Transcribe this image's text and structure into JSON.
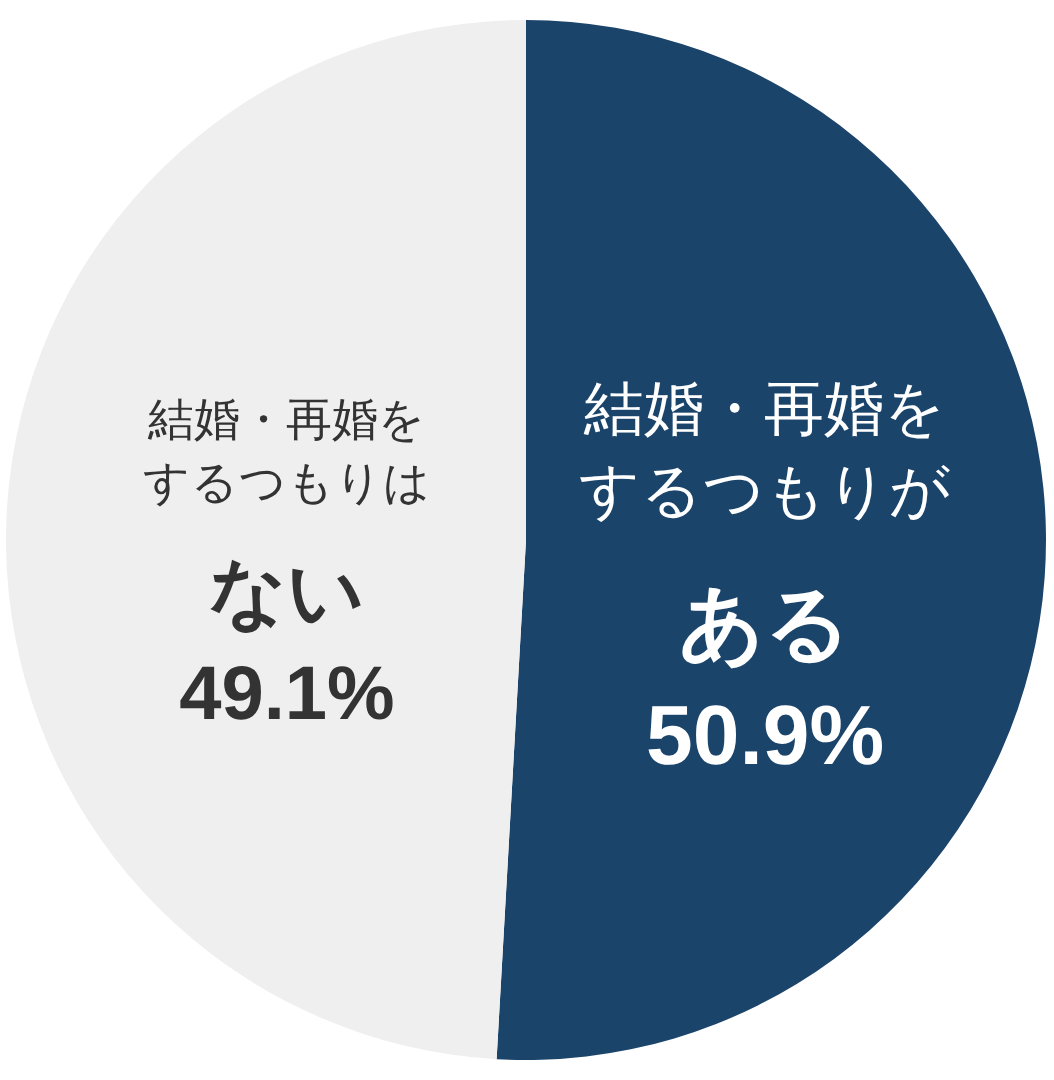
{
  "chart_data": {
    "type": "pie",
    "categories": [
      "結婚・再婚をするつもりが**ある**",
      "結婚・再婚をするつもりは**ない**"
    ],
    "values": [
      50.9,
      49.1
    ],
    "value_labels": [
      "50.9%",
      "49.1%"
    ],
    "colors": [
      "#1b446b",
      "#efefef"
    ]
  }
}
